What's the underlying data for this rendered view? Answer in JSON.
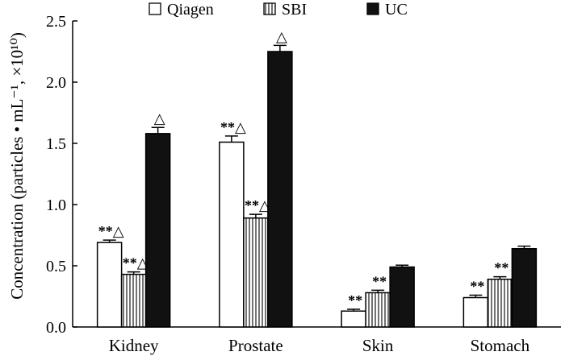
{
  "chart_data": {
    "type": "bar",
    "title": "",
    "xlabel": "",
    "ylabel": "Concentration (particles • mL⁻¹, ×10¹⁰)",
    "ylim": [
      0,
      2.5
    ],
    "yticks": [
      0.0,
      0.5,
      1.0,
      1.5,
      2.0,
      2.5
    ],
    "ytick_labels": [
      "0.0",
      "0.5",
      "1.0",
      "1.5",
      "2.0",
      "2.5"
    ],
    "categories": [
      "Kidney",
      "Prostate",
      "Skin",
      "Stomach"
    ],
    "legend_position": "top",
    "series": [
      {
        "name": "Qiagen",
        "pattern": "open",
        "values": [
          0.69,
          1.51,
          0.13,
          0.24
        ],
        "errors": [
          0.02,
          0.05,
          0.015,
          0.02
        ],
        "annotations": [
          "**△",
          "**△",
          "**",
          "**"
        ]
      },
      {
        "name": "SBI",
        "pattern": "vertical-hatch",
        "values": [
          0.43,
          0.89,
          0.28,
          0.39
        ],
        "errors": [
          0.02,
          0.03,
          0.02,
          0.02
        ],
        "annotations": [
          "**△",
          "**△",
          "**",
          "**"
        ]
      },
      {
        "name": "UC",
        "pattern": "solid",
        "values": [
          1.58,
          2.25,
          0.49,
          0.64
        ],
        "errors": [
          0.05,
          0.05,
          0.015,
          0.02
        ],
        "annotations": [
          "△",
          "△",
          "",
          ""
        ]
      }
    ],
    "colors": {
      "stroke": "#000000",
      "fill_solid": "#111111",
      "fill_open": "#ffffff"
    }
  }
}
